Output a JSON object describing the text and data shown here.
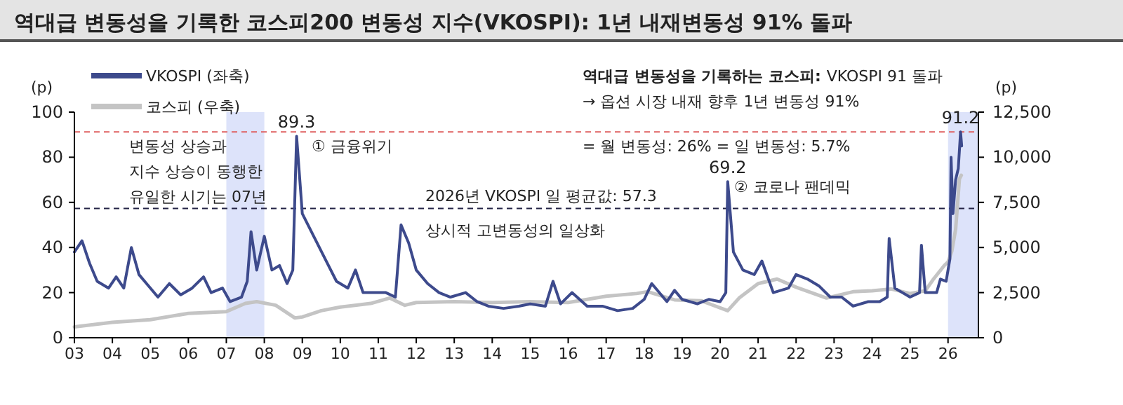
{
  "chart_data": {
    "type": "line",
    "title": "역대급 변동성을 기록한 코스피200 변동성 지수(VKOSPI): 1년 내재변동성 91% 돌파",
    "ylabel": "(p)",
    "y2label": "(p)",
    "xlim": [
      2003,
      2026.8
    ],
    "xticks": [
      {
        "value": 2003,
        "label": "03"
      },
      {
        "value": 2004,
        "label": "04"
      },
      {
        "value": 2005,
        "label": "05"
      },
      {
        "value": 2006,
        "label": "06"
      },
      {
        "value": 2007,
        "label": "07"
      },
      {
        "value": 2008,
        "label": "08"
      },
      {
        "value": 2009,
        "label": "09"
      },
      {
        "value": 2010,
        "label": "10"
      },
      {
        "value": 2011,
        "label": "11"
      },
      {
        "value": 2012,
        "label": "12"
      },
      {
        "value": 2013,
        "label": "13"
      },
      {
        "value": 2014,
        "label": "14"
      },
      {
        "value": 2015,
        "label": "15"
      },
      {
        "value": 2016,
        "label": "16"
      },
      {
        "value": 2017,
        "label": "17"
      },
      {
        "value": 2018,
        "label": "18"
      },
      {
        "value": 2019,
        "label": "19"
      },
      {
        "value": 2020,
        "label": "20"
      },
      {
        "value": 2021,
        "label": "21"
      },
      {
        "value": 2022,
        "label": "22"
      },
      {
        "value": 2023,
        "label": "23"
      },
      {
        "value": 2024,
        "label": "24"
      },
      {
        "value": 2025,
        "label": "25"
      },
      {
        "value": 2026,
        "label": "26"
      }
    ],
    "ylim": [
      0,
      100
    ],
    "yticks": [
      0,
      20,
      40,
      60,
      80,
      100
    ],
    "y2lim": [
      0,
      12500
    ],
    "y2ticks": [
      0,
      {
        "value": 2500,
        "label": "2,500"
      },
      {
        "value": 5000,
        "label": "5,000"
      },
      {
        "value": 7500,
        "label": "7,500"
      },
      {
        "value": 10000,
        "label": "10,000"
      },
      {
        "value": 12500,
        "label": "12,500"
      }
    ],
    "grid": false,
    "legend": "top left",
    "marker": "none",
    "line_style": "solid",
    "series": [
      {
        "name": "VKOSPI (좌축)",
        "color": "#3d4a8c",
        "x": [
          2003.0,
          2003.2,
          2003.4,
          2003.6,
          2003.9,
          2004.1,
          2004.3,
          2004.5,
          2004.7,
          2004.9,
          2005.2,
          2005.5,
          2005.8,
          2006.1,
          2006.4,
          2006.6,
          2006.9,
          2007.1,
          2007.4,
          2007.55,
          2007.65,
          2007.8,
          2008.0,
          2008.2,
          2008.4,
          2008.6,
          2008.75,
          2008.85,
          2009.0,
          2009.3,
          2009.6,
          2009.9,
          2010.2,
          2010.4,
          2010.6,
          2010.9,
          2011.2,
          2011.45,
          2011.6,
          2011.8,
          2012.0,
          2012.3,
          2012.6,
          2012.9,
          2013.3,
          2013.6,
          2013.9,
          2014.3,
          2014.7,
          2015.0,
          2015.4,
          2015.6,
          2015.8,
          2016.1,
          2016.5,
          2016.9,
          2017.3,
          2017.7,
          2018.0,
          2018.2,
          2018.6,
          2018.8,
          2019.0,
          2019.4,
          2019.7,
          2020.0,
          2020.15,
          2020.2,
          2020.35,
          2020.6,
          2020.9,
          2021.1,
          2021.4,
          2021.8,
          2022.0,
          2022.3,
          2022.6,
          2022.9,
          2023.2,
          2023.5,
          2023.9,
          2024.2,
          2024.4,
          2024.45,
          2024.6,
          2024.8,
          2025.0,
          2025.25,
          2025.3,
          2025.4,
          2025.7,
          2025.8,
          2025.95,
          2026.05,
          2026.08,
          2026.13,
          2026.2,
          2026.27,
          2026.33,
          2026.36
        ],
        "values": [
          38,
          43,
          33,
          25,
          22,
          27,
          22,
          40,
          28,
          24,
          18,
          24,
          19,
          22,
          27,
          20,
          22,
          16,
          18,
          25,
          47,
          30,
          45,
          30,
          32,
          24,
          30,
          89.3,
          55,
          45,
          35,
          25,
          22,
          30,
          20,
          20,
          20,
          18,
          50,
          42,
          30,
          24,
          20,
          18,
          20,
          16,
          14,
          13,
          14,
          15,
          14,
          25,
          15,
          20,
          14,
          14,
          12,
          13,
          17,
          24,
          16,
          21,
          17,
          15,
          17,
          16,
          20,
          69.2,
          38,
          30,
          28,
          34,
          20,
          22,
          28,
          26,
          23,
          18,
          18,
          14,
          16,
          16,
          18,
          44,
          22,
          20,
          18,
          20,
          41,
          20,
          20,
          26,
          25,
          35,
          80,
          55,
          70,
          75,
          91.2,
          85
        ]
      },
      {
        "name": "코스피 (우축)",
        "color": "#c4c4c4",
        "axis": "y2",
        "x": [
          2003.0,
          2004.0,
          2005.0,
          2006.0,
          2007.0,
          2007.5,
          2007.8,
          2008.3,
          2008.8,
          2009.0,
          2009.5,
          2010.0,
          2010.8,
          2011.3,
          2011.7,
          2012.0,
          2013.0,
          2014.0,
          2015.0,
          2016.0,
          2017.0,
          2017.8,
          2018.1,
          2018.8,
          2019.5,
          2020.2,
          2020.5,
          2021.0,
          2021.5,
          2022.0,
          2022.8,
          2023.5,
          2024.0,
          2024.5,
          2025.0,
          2025.4,
          2025.6,
          2025.9,
          2026.0,
          2026.1,
          2026.2,
          2026.3,
          2026.35
        ],
        "values": [
          600,
          850,
          1000,
          1350,
          1450,
          1900,
          2000,
          1800,
          1100,
          1150,
          1500,
          1700,
          1900,
          2200,
          1800,
          1950,
          2000,
          1950,
          2000,
          1950,
          2300,
          2450,
          2550,
          2100,
          2050,
          1500,
          2200,
          3000,
          3250,
          2800,
          2200,
          2550,
          2600,
          2700,
          2450,
          2600,
          3200,
          4000,
          4200,
          4800,
          6000,
          8800,
          9000
        ]
      }
    ],
    "bands": [
      {
        "axis": "x",
        "from": 2007,
        "to": 2008,
        "color": "#dde3fa"
      },
      {
        "axis": "x",
        "from": 2026,
        "to": 2026.8,
        "color": "#dde3fa"
      }
    ],
    "ref_lines": [
      {
        "axis": "y",
        "value": 91.2,
        "color": "#e06060",
        "line_style": "dashed"
      },
      {
        "axis": "y",
        "value": 57.3,
        "label": "2026년 VKOSPI 일 평균값: 57.3",
        "color": "#222244",
        "line_style": "dashed"
      }
    ],
    "annotations": [
      {
        "text": "89.3",
        "x": 2008.85,
        "y": 89.3
      },
      "① 금융위기",
      {
        "text": "69.2",
        "x": 2020.2,
        "y": 69.2
      },
      "② 코로나 팬데믹",
      {
        "text": "91.2",
        "x": 2026.33,
        "y": 91.2
      },
      "변동성 상승과\n지수 상승이 동행한\n유일한 시기는 07년",
      "상시적 고변동성의 일상화",
      "역대급 변동성을 기록하는 코스피:",
      "VKOSPI 91 돌파",
      "→ 옵션 시장 내재 향후 1년 변동성 91%",
      "= 월 변동성: 26% = 일 변동성: 5.7%"
    ]
  }
}
